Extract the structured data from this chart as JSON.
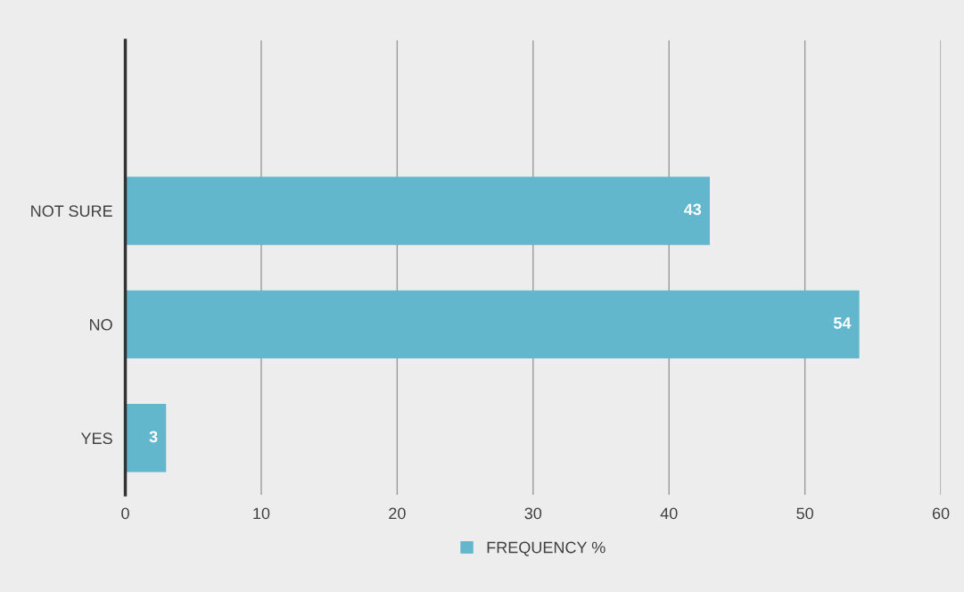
{
  "chart_data": {
    "type": "bar",
    "orientation": "horizontal",
    "categories": [
      "NOT SURE",
      "NO",
      "YES"
    ],
    "series": [
      {
        "name": "FREQUENCY %",
        "color": "#62b7cd",
        "values": [
          43,
          54,
          3
        ]
      }
    ],
    "xlim": [
      0,
      60
    ],
    "xticks": [
      0,
      10,
      20,
      30,
      40,
      50,
      60
    ],
    "grid": "x",
    "legend": "bottom",
    "data_labels": true
  }
}
